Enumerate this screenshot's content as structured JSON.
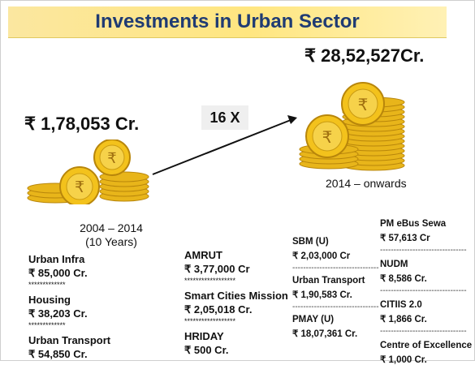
{
  "title": "Investments in Urban Sector",
  "left": {
    "amount": "₹ 1,78,053 Cr.",
    "period_line1": "2004 – 2014",
    "period_line2": "(10 Years)"
  },
  "right": {
    "amount": "₹ 28,52,527Cr.",
    "period": "2014 – onwards"
  },
  "multiplier": "16 X",
  "col1": [
    {
      "name": "Urban Infra",
      "value": "₹ 85,000 Cr."
    },
    {
      "name": "Housing",
      "value": "₹ 38,203 Cr."
    },
    {
      "name": "Urban Transport",
      "value": "₹ 54,850 Cr."
    }
  ],
  "col1_sep": "*************",
  "col2": [
    {
      "name": "AMRUT",
      "value": "₹ 3,77,000 Cr"
    },
    {
      "name": "Smart Cities Mission",
      "value": "₹ 2,05,018 Cr."
    },
    {
      "name": "HRIDAY",
      "value": "₹ 500 Cr."
    }
  ],
  "col2_sep": "******************",
  "col3": [
    {
      "name": "SBM (U)",
      "value": "₹ 2,03,000 Cr"
    },
    {
      "name": "Urban Transport",
      "value": "₹ 1,90,583 Cr."
    },
    {
      "name": "PMAY (U)",
      "value": "₹ 18,07,361 Cr."
    }
  ],
  "col4": [
    {
      "name": "PM eBus Sewa",
      "value": "₹ 57,613 Cr"
    },
    {
      "name": "NUDM",
      "value": "₹ 8,586 Cr."
    },
    {
      "name": "CITIIS 2.0",
      "value": "₹ 1,866 Cr."
    },
    {
      "name": "Centre of Excellence",
      "value": "₹ 1,000 Cr."
    }
  ],
  "dash_sep": "--------------------------------",
  "colors": {
    "title": "#1f3b73",
    "title_bg": "#ffe680",
    "coin": "#f3c21c"
  },
  "icons": [
    "rupee-coin-stack-small",
    "rupee-coin-stack-large",
    "arrow-icon"
  ]
}
